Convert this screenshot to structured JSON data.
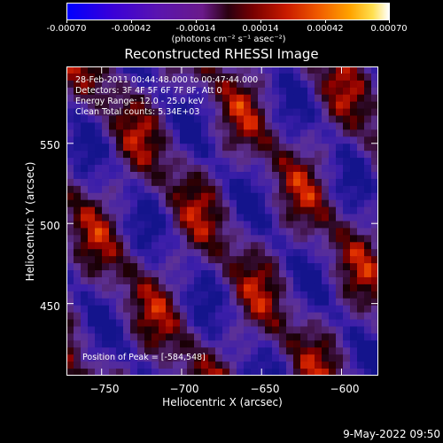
{
  "colorbar": {
    "labels": [
      "-0.00070",
      "-0.00042",
      "-0.00014",
      "0.00014",
      "0.00042",
      "0.00070"
    ],
    "units": "(photons cm⁻² s⁻¹ asec⁻²)"
  },
  "chart_data": {
    "type": "heatmap",
    "title": "Reconstructed RHESSI Image",
    "xlabel": "Heliocentric X (arcsec)",
    "ylabel": "Heliocentric Y (arcsec)",
    "xlim": [
      -772,
      -577
    ],
    "ylim": [
      405,
      598
    ],
    "xticks": [
      -750,
      -700,
      -650,
      -600
    ],
    "yticks": [
      450,
      500,
      550
    ],
    "xtick_labels": [
      "−750",
      "−700",
      "−650",
      "−600"
    ],
    "ytick_labels": [
      "450",
      "500",
      "550"
    ],
    "zlim": [
      -0.0007,
      0.0007
    ],
    "colormap": "blue-purple-black-red-orange-yellow-white",
    "annotations": [
      "28-Feb-2011 00:44:48.000 to 00:47:44.000",
      "Detectors: 3F 4F 5F 6F 7F 8F, Att 0",
      "Energy Range: 12.0 - 25.0 keV",
      "Clean     Total counts: 5.34E+03"
    ],
    "peak_label": "Position of Peak = [-584,548]",
    "peak": [
      -584,
      548
    ]
  },
  "datestamp": "9-May-2022 09:50"
}
